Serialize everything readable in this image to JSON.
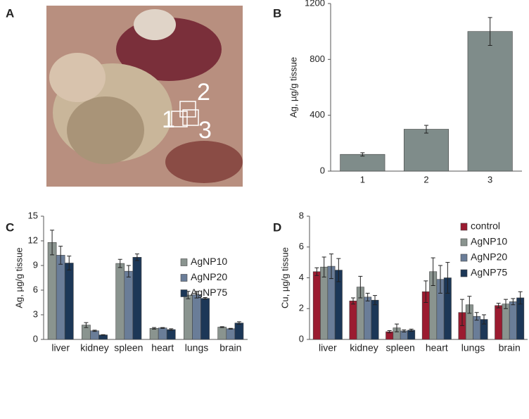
{
  "panel_labels": [
    "A",
    "B",
    "C",
    "D"
  ],
  "photo_labels": [
    "1",
    "2",
    "3"
  ],
  "chart_data": [
    {
      "type": "bar",
      "ylabel": "Ag, µg/g tissue",
      "categories": [
        "1",
        "2",
        "3"
      ],
      "values": [
        120,
        300,
        1000
      ],
      "errors": [
        12,
        28,
        100
      ],
      "color": "#7f8c8a",
      "ylim": [
        0,
        1200
      ],
      "yticks": [
        0,
        400,
        800,
        1200
      ]
    },
    {
      "type": "bar",
      "ylabel": "Ag, µg/g tissue",
      "categories": [
        "liver",
        "kidney",
        "spleen",
        "heart",
        "lungs",
        "brain"
      ],
      "ylim": [
        0,
        15
      ],
      "yticks": [
        0,
        3,
        6,
        9,
        12,
        15
      ],
      "legend": "right",
      "series": [
        {
          "name": "AgNP10",
          "color": "#8a948f",
          "values": [
            11.8,
            1.75,
            9.25,
            1.35,
            5.4,
            1.5
          ],
          "errors": [
            1.5,
            0.3,
            0.5,
            0.1,
            0.45,
            0.05
          ]
        },
        {
          "name": "AgNP20",
          "color": "#6a7d98",
          "values": [
            10.25,
            1.05,
            8.3,
            1.4,
            5.45,
            1.3
          ],
          "errors": [
            1.1,
            0.07,
            0.7,
            0.05,
            0.4,
            0.05
          ]
        },
        {
          "name": "AgNP75",
          "color": "#1c3757",
          "values": [
            9.3,
            0.55,
            10.0,
            1.2,
            5.0,
            2.0
          ],
          "errors": [
            0.85,
            0.03,
            0.4,
            0.1,
            0.1,
            0.15
          ]
        }
      ]
    },
    {
      "type": "bar",
      "ylabel": "Cu, µg/g tissue",
      "categories": [
        "liver",
        "kidney",
        "spleen",
        "heart",
        "lungs",
        "brain"
      ],
      "ylim": [
        0,
        8
      ],
      "yticks": [
        0,
        2,
        4,
        6,
        8
      ],
      "legend": "upper right",
      "series": [
        {
          "name": "control",
          "color": "#9b1b30",
          "values": [
            4.4,
            2.5,
            0.5,
            3.1,
            1.75,
            2.2
          ],
          "errors": [
            0.25,
            0.2,
            0.07,
            0.7,
            0.85,
            0.15
          ]
        },
        {
          "name": "AgNP10",
          "color": "#8a948f",
          "values": [
            4.7,
            3.4,
            0.75,
            4.4,
            2.25,
            2.3
          ],
          "errors": [
            0.65,
            0.7,
            0.25,
            0.9,
            0.55,
            0.3
          ]
        },
        {
          "name": "AgNP20",
          "color": "#6a7d98",
          "values": [
            4.75,
            2.75,
            0.55,
            3.9,
            1.5,
            2.45
          ],
          "errors": [
            0.8,
            0.25,
            0.07,
            0.9,
            0.25,
            0.2
          ]
        },
        {
          "name": "AgNP75",
          "color": "#1c3757",
          "values": [
            4.5,
            2.55,
            0.6,
            4.0,
            1.3,
            2.7
          ],
          "errors": [
            0.75,
            0.3,
            0.07,
            1.0,
            0.3,
            0.4
          ]
        }
      ]
    }
  ]
}
